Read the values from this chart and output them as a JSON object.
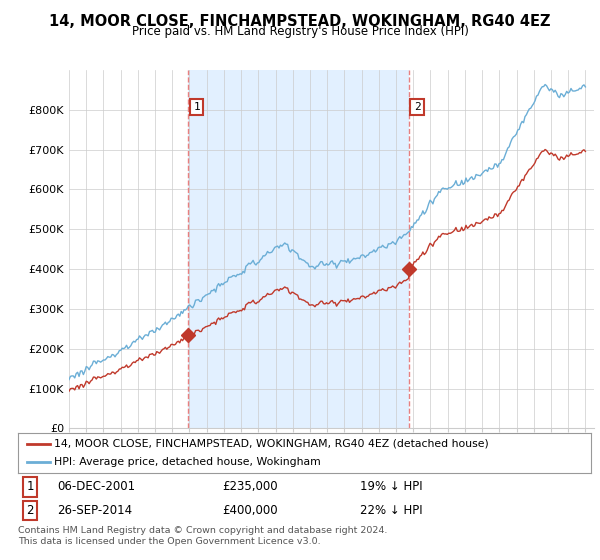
{
  "title": "14, MOOR CLOSE, FINCHAMPSTEAD, WOKINGHAM, RG40 4EZ",
  "subtitle": "Price paid vs. HM Land Registry's House Price Index (HPI)",
  "ylim": [
    0,
    900000
  ],
  "yticks": [
    0,
    100000,
    200000,
    300000,
    400000,
    500000,
    600000,
    700000,
    800000
  ],
  "ytick_labels": [
    "£0",
    "£100K",
    "£200K",
    "£300K",
    "£400K",
    "£500K",
    "£600K",
    "£700K",
    "£800K"
  ],
  "sale1_date_x": 2001.92,
  "sale1_y": 235000,
  "sale1_label": "1",
  "sale1_date_str": "06-DEC-2001",
  "sale1_price_str": "£235,000",
  "sale1_note": "19% ↓ HPI",
  "sale2_date_x": 2014.73,
  "sale2_y": 400000,
  "sale2_label": "2",
  "sale2_date_str": "26-SEP-2014",
  "sale2_price_str": "£400,000",
  "sale2_note": "22% ↓ HPI",
  "hpi_color": "#6baed6",
  "price_color": "#c0392b",
  "vline_color": "#e88080",
  "background_color": "#ffffff",
  "grid_color": "#cccccc",
  "shade_color": "#ddeeff",
  "legend_label_price": "14, MOOR CLOSE, FINCHAMPSTEAD, WOKINGHAM, RG40 4EZ (detached house)",
  "legend_label_hpi": "HPI: Average price, detached house, Wokingham",
  "footer": "Contains HM Land Registry data © Crown copyright and database right 2024.\nThis data is licensed under the Open Government Licence v3.0.",
  "xlim_start": 1995.0,
  "xlim_end": 2025.5
}
